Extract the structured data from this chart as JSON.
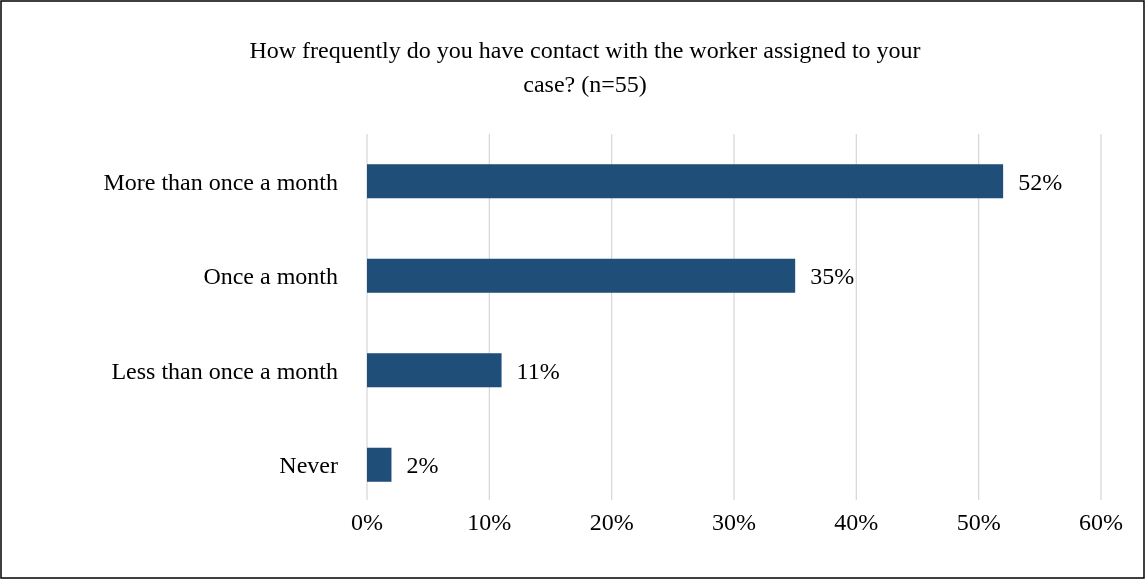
{
  "chart_data": {
    "type": "bar",
    "orientation": "horizontal",
    "title": "How frequently do you have contact with the worker assigned to your case? (n=55)",
    "categories": [
      "More than once a month",
      "Once a month",
      "Less than once a month",
      "Never"
    ],
    "values": [
      52,
      35,
      11,
      2
    ],
    "color": "#1f4e79",
    "value_labels": [
      "52%",
      "35%",
      "11%",
      "2%"
    ],
    "xlim": [
      0,
      60
    ],
    "xticks": [
      {
        "value": 0,
        "label": "0%"
      },
      {
        "value": 10,
        "label": "10%"
      },
      {
        "value": 20,
        "label": "20%"
      },
      {
        "value": 30,
        "label": "30%"
      },
      {
        "value": 40,
        "label": "40%"
      },
      {
        "value": 50,
        "label": "50%"
      },
      {
        "value": 60,
        "label": "60%"
      }
    ],
    "grid": "x"
  }
}
